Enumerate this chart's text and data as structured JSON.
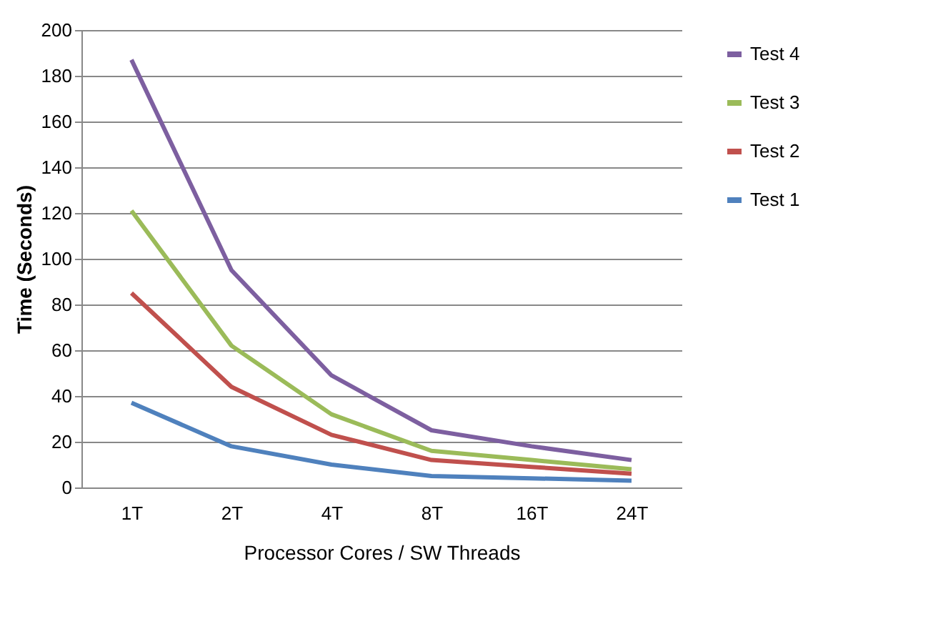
{
  "chart_data": {
    "type": "line",
    "xlabel": "Processor Cores / SW Threads",
    "ylabel": "Time (Seconds)",
    "categories": [
      "1T",
      "2T",
      "4T",
      "8T",
      "16T",
      "24T"
    ],
    "series": [
      {
        "name": "Test 4",
        "color": "#7d5fa0",
        "values": [
          187,
          95,
          49,
          25,
          18,
          12
        ]
      },
      {
        "name": "Test 3",
        "color": "#9bbb59",
        "values": [
          121,
          62,
          32,
          16,
          12,
          8
        ]
      },
      {
        "name": "Test 2",
        "color": "#c0504d",
        "values": [
          85,
          44,
          23,
          12,
          9,
          6
        ]
      },
      {
        "name": "Test 1",
        "color": "#4f81bd",
        "values": [
          37,
          18,
          10,
          5,
          4,
          3
        ]
      }
    ],
    "ylim": [
      0,
      200
    ],
    "yticks": [
      0,
      20,
      40,
      60,
      80,
      100,
      120,
      140,
      160,
      180,
      200
    ],
    "grid": "y",
    "legend": "right",
    "marker": "none",
    "line_style": "solid"
  }
}
